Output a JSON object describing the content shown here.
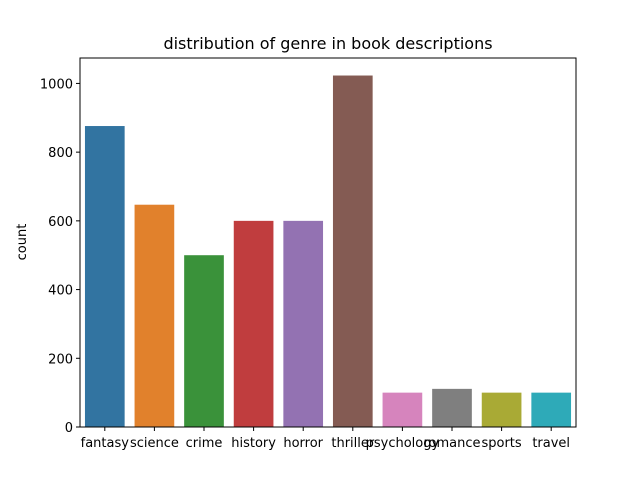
{
  "chart_data": {
    "type": "bar",
    "title": "distribution of genre in book descriptions",
    "xlabel": "",
    "ylabel": "count",
    "categories": [
      "fantasy",
      "science",
      "crime",
      "history",
      "horror",
      "thriller",
      "psychology",
      "romance",
      "sports",
      "travel"
    ],
    "values": [
      876,
      647,
      500,
      600,
      600,
      1023,
      100,
      111,
      100,
      100
    ],
    "colors": [
      "#3274a1",
      "#e1812c",
      "#3a923a",
      "#c03d3e",
      "#9372b2",
      "#845b53",
      "#d684bd",
      "#7f7f7f",
      "#a9aa35",
      "#2eaab8"
    ],
    "ylim": [
      0,
      1074
    ],
    "yticks": [
      0,
      200,
      400,
      600,
      800,
      1000
    ],
    "grid": false,
    "legend": "none"
  }
}
